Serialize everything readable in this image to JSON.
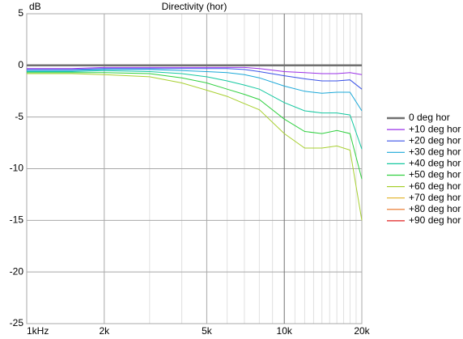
{
  "chart_data": {
    "type": "line",
    "title": "Directivity (hor)",
    "y_label": "dB",
    "x": [
      1000,
      1500,
      2000,
      3000,
      4000,
      5000,
      6000,
      7000,
      8000,
      10000,
      12000,
      14000,
      16000,
      18000,
      20000
    ],
    "xlim": [
      1000,
      20000
    ],
    "x_log": true,
    "xticks": [
      {
        "value": 1000,
        "label": "1kHz"
      },
      {
        "value": 2000,
        "label": "2k"
      },
      {
        "value": 5000,
        "label": "5k"
      },
      {
        "value": 10000,
        "label": "10k"
      },
      {
        "value": 20000,
        "label": "20k"
      }
    ],
    "xgrid_minor": [
      3000,
      4000,
      6000,
      7000,
      8000,
      9000,
      11000,
      12000,
      13000,
      14000,
      15000,
      16000,
      17000,
      18000,
      19000
    ],
    "ylim": [
      -25,
      5
    ],
    "yticks": [
      5,
      0,
      -5,
      -10,
      -15,
      -20,
      -25
    ],
    "grid": true,
    "legend": "right",
    "series": [
      {
        "name": "0 deg hor",
        "color": "#707070",
        "values": [
          0,
          0,
          0,
          0,
          0,
          0,
          0,
          0,
          0,
          0,
          0,
          0,
          0,
          0,
          0
        ]
      },
      {
        "name": "+10 deg hor",
        "color": "#9a30e8",
        "values": [
          -0.3,
          -0.3,
          -0.2,
          -0.2,
          -0.2,
          -0.2,
          -0.2,
          -0.2,
          -0.3,
          -0.6,
          -0.7,
          -0.8,
          -0.8,
          -0.7,
          -0.9
        ]
      },
      {
        "name": "+20 deg hor",
        "color": "#3a52e8",
        "values": [
          -0.4,
          -0.4,
          -0.3,
          -0.3,
          -0.3,
          -0.3,
          -0.3,
          -0.4,
          -0.6,
          -1.0,
          -1.3,
          -1.5,
          -1.5,
          -1.4,
          -2.3
        ]
      },
      {
        "name": "+30 deg hor",
        "color": "#1aa8d8",
        "values": [
          -0.5,
          -0.5,
          -0.4,
          -0.4,
          -0.5,
          -0.6,
          -0.7,
          -0.9,
          -1.2,
          -2.0,
          -2.5,
          -2.7,
          -2.6,
          -2.6,
          -4.4
        ]
      },
      {
        "name": "+40 deg hor",
        "color": "#14c8a0",
        "values": [
          -0.6,
          -0.6,
          -0.5,
          -0.6,
          -0.8,
          -1.1,
          -1.5,
          -1.9,
          -2.3,
          -3.6,
          -4.4,
          -4.6,
          -4.6,
          -4.8,
          -8.1
        ]
      },
      {
        "name": "+50 deg hor",
        "color": "#30d040",
        "values": [
          -0.7,
          -0.7,
          -0.7,
          -0.8,
          -1.2,
          -1.7,
          -2.3,
          -2.8,
          -3.3,
          -5.2,
          -6.4,
          -6.6,
          -6.3,
          -6.6,
          -11
        ]
      },
      {
        "name": "+60 deg hor",
        "color": "#a8d030",
        "values": [
          -0.8,
          -0.8,
          -0.9,
          -1.1,
          -1.7,
          -2.4,
          -3.0,
          -3.7,
          -4.3,
          -6.6,
          -8.0,
          -8.0,
          -7.8,
          -8.2,
          -15
        ]
      },
      {
        "name": "+70 deg hor",
        "color": "#e0b020",
        "values": [
          null,
          null,
          null,
          null,
          null,
          null,
          null,
          null,
          null,
          null,
          null,
          null,
          null,
          null,
          null
        ]
      },
      {
        "name": "+80 deg hor",
        "color": "#e87020",
        "values": [
          null,
          null,
          null,
          null,
          null,
          null,
          null,
          null,
          null,
          null,
          null,
          null,
          null,
          null,
          null
        ]
      },
      {
        "name": "+90 deg hor",
        "color": "#e02020",
        "values": [
          null,
          null,
          null,
          null,
          null,
          null,
          null,
          null,
          null,
          null,
          null,
          null,
          null,
          null,
          null
        ]
      }
    ]
  }
}
